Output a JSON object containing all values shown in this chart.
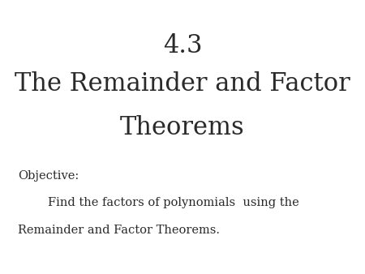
{
  "title_line1": "4.3",
  "title_line2": "The Remainder and Factor",
  "title_line3": "Theorems",
  "objective_label": "Objective:",
  "objective_line1": "        Find the factors of polynomials  using the",
  "objective_line2": "Remainder and Factor Theorems.",
  "background_color": "#ffffff",
  "text_color": "#2a2a2a",
  "title_fontsize": 22,
  "body_fontsize": 10.5
}
